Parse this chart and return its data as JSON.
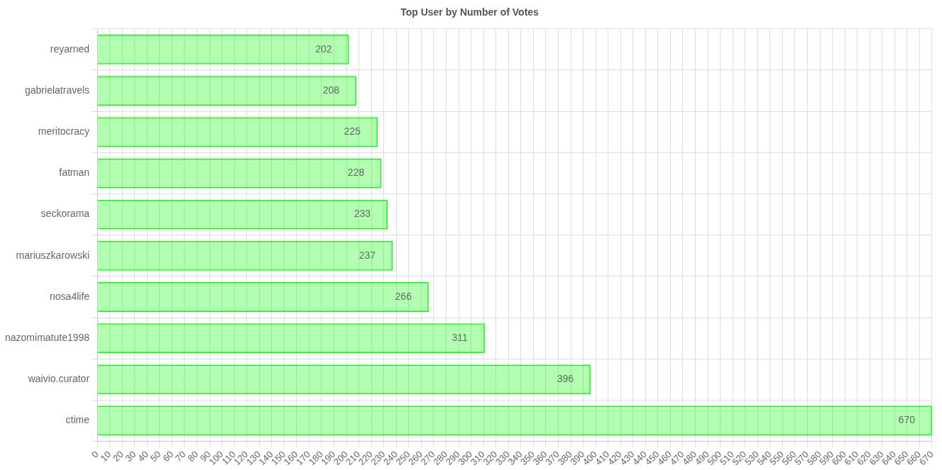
{
  "chart_data": {
    "type": "bar",
    "orientation": "horizontal",
    "title": "Top User by Number of Votes",
    "categories": [
      "reyarned",
      "gabrielatravels",
      "meritocracy",
      "fatman",
      "seckorama",
      "mariuszkarowski",
      "nosa4life",
      "nazomimatute1998",
      "waivio.curator",
      "ctime"
    ],
    "values": [
      202,
      208,
      225,
      228,
      233,
      237,
      266,
      311,
      396,
      670
    ],
    "color": "#00ff00",
    "xlim": [
      0,
      670
    ],
    "xticks": [
      0,
      10,
      20,
      30,
      40,
      50,
      60,
      70,
      80,
      90,
      100,
      110,
      120,
      130,
      140,
      150,
      160,
      170,
      180,
      190,
      200,
      210,
      220,
      230,
      240,
      250,
      260,
      270,
      280,
      290,
      300,
      310,
      320,
      330,
      340,
      350,
      360,
      370,
      380,
      390,
      400,
      410,
      420,
      430,
      440,
      450,
      460,
      470,
      480,
      490,
      500,
      510,
      520,
      530,
      540,
      550,
      560,
      570,
      580,
      590,
      600,
      610,
      620,
      630,
      640,
      650,
      660,
      670
    ],
    "grid": true,
    "legend": false,
    "data_labels": true
  }
}
